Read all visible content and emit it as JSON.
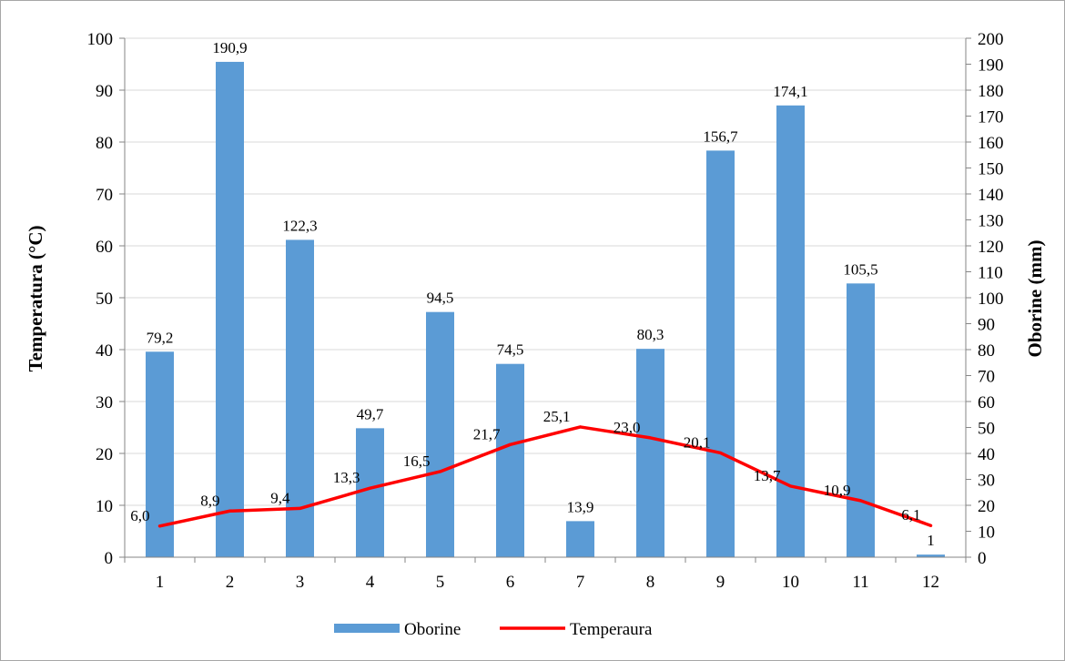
{
  "chart_data": {
    "type": "bar",
    "categories": [
      "1",
      "2",
      "3",
      "4",
      "5",
      "6",
      "7",
      "8",
      "9",
      "10",
      "11",
      "12"
    ],
    "series": [
      {
        "name": "Oborine",
        "type": "bar",
        "axis": "right",
        "color": "#5b9bd5",
        "values": [
          79.2,
          190.9,
          122.3,
          49.7,
          94.5,
          74.5,
          13.9,
          80.3,
          156.7,
          174.1,
          105.5,
          1
        ],
        "labels": [
          "79,2",
          "190,9",
          "122,3",
          "49,7",
          "94,5",
          "74,5",
          "13,9",
          "80,3",
          "156,7",
          "174,1",
          "105,5",
          "1"
        ]
      },
      {
        "name": "Temperaura",
        "type": "line",
        "axis": "left",
        "color": "#ff0000",
        "values": [
          6.0,
          8.9,
          9.4,
          13.3,
          16.5,
          21.7,
          25.1,
          23.0,
          20.1,
          13.7,
          10.9,
          6.1
        ],
        "labels": [
          "6,0",
          "8,9",
          "9,4",
          "13,3",
          "16,5",
          "21,7",
          "25,1",
          "23,0",
          "20,1",
          "13,7",
          "10,9",
          "6,1"
        ]
      }
    ],
    "ylabel": "Temperatura (°C)",
    "y2label": "Oborine (mm)",
    "ylim": [
      0,
      100
    ],
    "y2lim": [
      0,
      200
    ],
    "yticks": [
      "0",
      "10",
      "20",
      "30",
      "40",
      "50",
      "60",
      "70",
      "80",
      "90",
      "100"
    ],
    "y2ticks": [
      "0",
      "10",
      "20",
      "30",
      "40",
      "50",
      "60",
      "70",
      "80",
      "90",
      "100",
      "110",
      "120",
      "130",
      "140",
      "150",
      "160",
      "170",
      "180",
      "190",
      "200"
    ],
    "grid": true,
    "legend": "bottom-center"
  }
}
